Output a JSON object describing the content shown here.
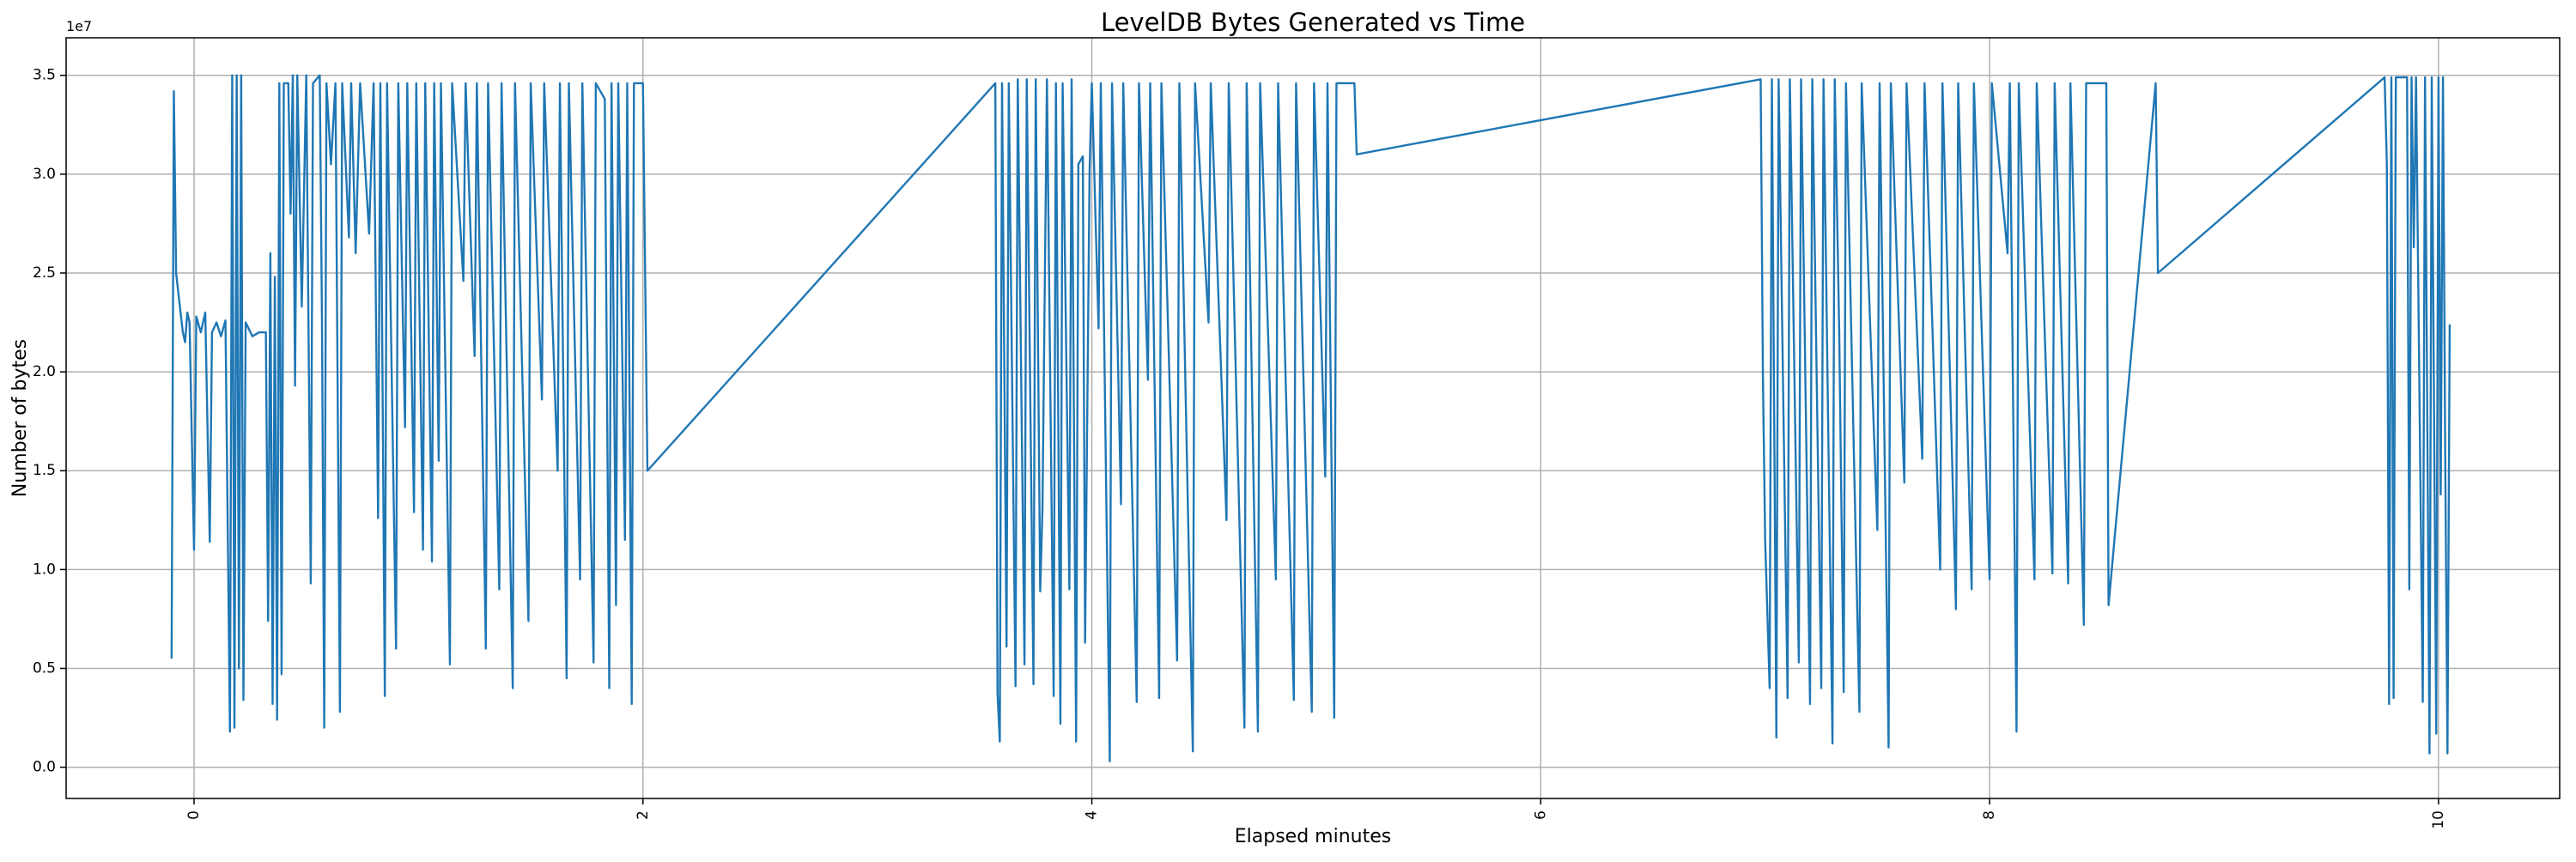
{
  "chart_data": {
    "type": "line",
    "title": "LevelDB Bytes Generated vs Time",
    "xlabel": "Elapsed minutes",
    "ylabel": "Number of bytes",
    "y_offset_label": "1e7",
    "color": "#1f77b4",
    "grid": true,
    "xlim": [
      -0.57,
      10.54
    ],
    "ylim": [
      -1580000,
      36900000
    ],
    "xticks": [
      0,
      2,
      4,
      6,
      8,
      10
    ],
    "yticks": [
      {
        "value": 0,
        "label": "0.0"
      },
      {
        "value": 5000000,
        "label": "0.5"
      },
      {
        "value": 10000000,
        "label": "1.0"
      },
      {
        "value": 15000000,
        "label": "1.5"
      },
      {
        "value": 20000000,
        "label": "2.0"
      },
      {
        "value": 25000000,
        "label": "2.5"
      },
      {
        "value": 30000000,
        "label": "3.0"
      },
      {
        "value": 35000000,
        "label": "3.5"
      }
    ],
    "x": [
      -0.1,
      -0.09,
      -0.08,
      -0.05,
      -0.04,
      -0.03,
      -0.02,
      0.0,
      0.01,
      0.03,
      0.05,
      0.07,
      0.08,
      0.1,
      0.12,
      0.14,
      0.16,
      0.17,
      0.18,
      0.19,
      0.2,
      0.21,
      0.22,
      0.23,
      0.26,
      0.29,
      0.32,
      0.33,
      0.34,
      0.35,
      0.36,
      0.37,
      0.38,
      0.39,
      0.4,
      0.42,
      0.43,
      0.44,
      0.45,
      0.46,
      0.48,
      0.5,
      0.52,
      0.53,
      0.56,
      0.57,
      0.58,
      0.59,
      0.61,
      0.63,
      0.65,
      0.66,
      0.69,
      0.7,
      0.72,
      0.74,
      0.78,
      0.8,
      0.82,
      0.83,
      0.85,
      0.86,
      0.9,
      0.91,
      0.94,
      0.95,
      0.98,
      0.99,
      1.02,
      1.03,
      1.06,
      1.07,
      1.09,
      1.1,
      1.14,
      1.15,
      1.2,
      1.21,
      1.25,
      1.26,
      1.3,
      1.31,
      1.36,
      1.37,
      1.42,
      1.43,
      1.49,
      1.5,
      1.55,
      1.56,
      1.62,
      1.63,
      1.66,
      1.67,
      1.72,
      1.73,
      1.78,
      1.79,
      1.83,
      1.85,
      1.86,
      1.88,
      1.89,
      1.92,
      1.93,
      1.95,
      1.96,
      2.0,
      2.02,
      3.57,
      3.58,
      3.59,
      3.6,
      3.62,
      3.63,
      3.66,
      3.67,
      3.7,
      3.71,
      3.74,
      3.75,
      3.77,
      3.78,
      3.8,
      3.83,
      3.84,
      3.86,
      3.87,
      3.9,
      3.91,
      3.93,
      3.94,
      3.96,
      3.97,
      3.99,
      4.0,
      4.03,
      4.04,
      4.08,
      4.09,
      4.13,
      4.14,
      4.2,
      4.21,
      4.25,
      4.26,
      4.3,
      4.31,
      4.38,
      4.39,
      4.45,
      4.46,
      4.52,
      4.53,
      4.6,
      4.61,
      4.68,
      4.69,
      4.74,
      4.75,
      4.82,
      4.83,
      4.9,
      4.91,
      4.98,
      4.99,
      5.04,
      5.05,
      5.08,
      5.09,
      5.17,
      5.18,
      6.98,
      6.99,
      7.0,
      7.02,
      7.03,
      7.05,
      7.06,
      7.1,
      7.11,
      7.15,
      7.16,
      7.2,
      7.21,
      7.25,
      7.26,
      7.3,
      7.31,
      7.33,
      7.35,
      7.36,
      7.42,
      7.43,
      7.5,
      7.51,
      7.55,
      7.56,
      7.62,
      7.63,
      7.7,
      7.71,
      7.78,
      7.79,
      7.85,
      7.86,
      7.92,
      7.93,
      8.0,
      8.01,
      8.08,
      8.09,
      8.12,
      8.13,
      8.2,
      8.21,
      8.28,
      8.29,
      8.35,
      8.36,
      8.42,
      8.43,
      8.52,
      8.53,
      8.74,
      8.75,
      9.76,
      9.77,
      9.78,
      9.79,
      9.8,
      9.81,
      9.86,
      9.87,
      9.88,
      9.89,
      9.9,
      9.93,
      9.94,
      9.96,
      9.97,
      9.99,
      10.0,
      10.01,
      10.02,
      10.03,
      10.04,
      10.05
    ],
    "values": [
      5500000,
      34200000,
      25000000,
      22000000,
      21500000,
      23000000,
      22500000,
      11000000,
      22800000,
      22000000,
      23000000,
      11400000,
      22000000,
      22500000,
      21800000,
      22600000,
      1800000,
      35000000,
      2000000,
      35000000,
      5000000,
      35000000,
      3400000,
      22500000,
      21800000,
      22000000,
      22000000,
      7400000,
      26000000,
      3200000,
      24800000,
      2400000,
      34600000,
      4700000,
      34600000,
      34600000,
      28000000,
      35000000,
      19300000,
      35000000,
      23300000,
      35000000,
      9300000,
      34600000,
      35000000,
      22600000,
      2000000,
      34600000,
      30500000,
      34600000,
      2800000,
      34600000,
      26800000,
      34600000,
      26000000,
      34600000,
      27000000,
      34600000,
      12600000,
      34600000,
      3600000,
      34600000,
      6000000,
      34600000,
      17200000,
      34600000,
      12900000,
      34600000,
      11000000,
      34600000,
      10400000,
      34600000,
      15500000,
      34600000,
      5200000,
      34600000,
      24600000,
      34600000,
      20800000,
      34600000,
      6000000,
      34600000,
      9000000,
      34600000,
      4000000,
      34600000,
      7400000,
      34600000,
      18600000,
      34600000,
      15000000,
      34600000,
      4500000,
      34600000,
      9500000,
      34600000,
      5300000,
      34600000,
      33800000,
      4000000,
      34600000,
      8200000,
      34600000,
      11500000,
      34600000,
      3200000,
      34600000,
      34600000,
      15000000,
      34600000,
      3700000,
      1300000,
      34600000,
      6100000,
      34600000,
      4100000,
      34800000,
      5200000,
      34800000,
      4200000,
      34800000,
      8900000,
      13000000,
      34800000,
      3600000,
      34600000,
      2200000,
      34600000,
      9000000,
      34800000,
      1300000,
      30500000,
      30900000,
      6300000,
      30200000,
      34600000,
      22200000,
      34600000,
      300000,
      34600000,
      13300000,
      34600000,
      3300000,
      34600000,
      19600000,
      34600000,
      3500000,
      34600000,
      5400000,
      34600000,
      800000,
      34600000,
      22500000,
      34600000,
      12500000,
      34600000,
      2000000,
      34600000,
      1800000,
      34600000,
      9500000,
      34600000,
      3400000,
      34600000,
      2800000,
      34600000,
      14700000,
      34600000,
      2500000,
      34600000,
      34600000,
      31000000,
      34800000,
      19800000,
      11500000,
      4000000,
      34800000,
      1500000,
      34800000,
      3500000,
      34800000,
      5300000,
      34800000,
      3200000,
      34800000,
      4000000,
      34800000,
      1200000,
      34800000,
      22000000,
      3800000,
      34600000,
      2800000,
      34600000,
      12000000,
      34600000,
      1000000,
      34600000,
      14400000,
      34600000,
      15600000,
      34600000,
      10000000,
      34600000,
      8000000,
      34600000,
      9000000,
      34600000,
      9500000,
      34600000,
      26000000,
      34600000,
      1800000,
      34600000,
      9500000,
      34600000,
      9800000,
      34600000,
      9300000,
      34600000,
      7200000,
      34600000,
      34600000,
      8200000,
      34600000,
      25000000,
      34900000,
      30500000,
      3200000,
      34900000,
      3500000,
      34900000,
      34900000,
      9000000,
      34900000,
      26300000,
      34900000,
      3300000,
      34900000,
      700000,
      34900000,
      1700000,
      34900000,
      13800000,
      34900000,
      15800000,
      700000,
      22400000
    ]
  }
}
